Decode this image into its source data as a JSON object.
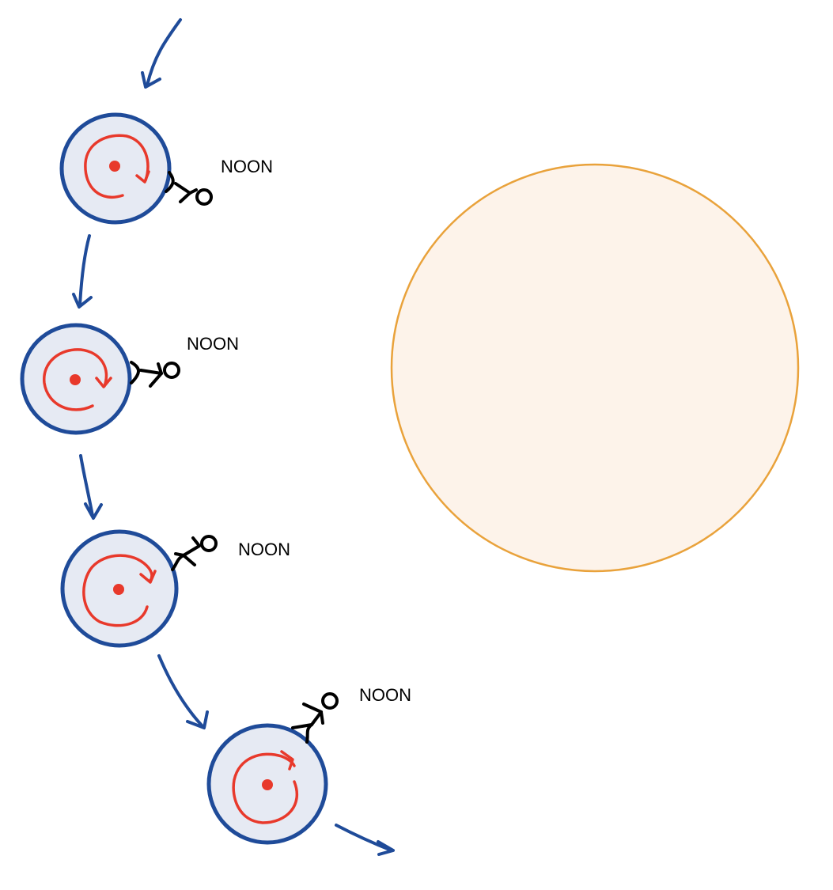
{
  "diagram": {
    "labels": {
      "noon_1": "NOON",
      "noon_2": "NOON",
      "noon_3": "NOON",
      "noon_4": "NOON"
    },
    "colors": {
      "planet_fill": "#e6eaf3",
      "planet_stroke": "#1f4b99",
      "spin_red": "#e8392b",
      "sun_fill": "#fdf3ea",
      "sun_stroke": "#e9a23b",
      "arrow_blue": "#1f4b99",
      "figure_black": "#000000"
    }
  }
}
